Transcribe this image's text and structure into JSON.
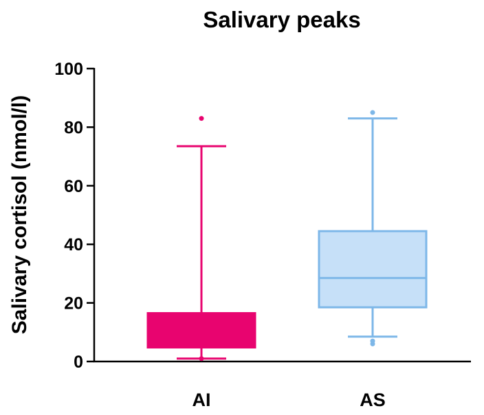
{
  "chart_data": {
    "type": "box",
    "title": "Salivary peaks",
    "ylabel": "Salivary cortisol (nmol/l)",
    "xlabel": "",
    "ylim": [
      0,
      100
    ],
    "yticks": [
      0,
      20,
      40,
      60,
      80,
      100
    ],
    "grid": false,
    "categories": [
      "AI",
      "AS"
    ],
    "series": [
      {
        "category": "AI",
        "min": 1,
        "q1": 4.8,
        "median": 4.8,
        "q3": 16.5,
        "max": 73.5,
        "outliers": [
          83,
          1
        ],
        "color": "#E8046F",
        "fill": "#E8046F"
      },
      {
        "category": "AS",
        "min": 8.5,
        "q1": 18.5,
        "median": 28.5,
        "q3": 44.5,
        "max": 83,
        "outliers": [
          85,
          7,
          6
        ],
        "color": "#7DB7E8",
        "fill": "#C6E0F8"
      }
    ]
  }
}
